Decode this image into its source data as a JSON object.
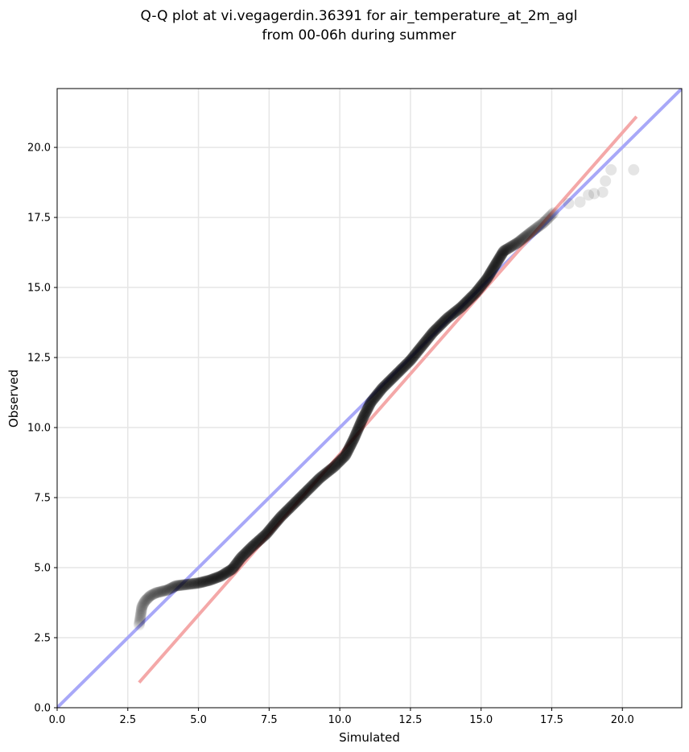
{
  "chart_data": {
    "type": "scatter",
    "title_line1": "Q-Q plot at vi.vegagerdin.36391 for air_temperature_at_2m_agl",
    "title_line2": "from 00-06h during summer",
    "xlabel": "Simulated",
    "ylabel": "Observed",
    "xlim": [
      0,
      22.1
    ],
    "ylim": [
      0,
      22.1
    ],
    "xticks": [
      0.0,
      2.5,
      5.0,
      7.5,
      10.0,
      12.5,
      15.0,
      17.5,
      20.0
    ],
    "yticks": [
      0.0,
      2.5,
      5.0,
      7.5,
      10.0,
      12.5,
      15.0,
      17.5,
      20.0
    ],
    "xtick_labels": [
      "0.0",
      "2.5",
      "5.0",
      "7.5",
      "10.0",
      "12.5",
      "15.0",
      "17.5",
      "20.0"
    ],
    "ytick_labels": [
      "0.0",
      "2.5",
      "5.0",
      "7.5",
      "10.0",
      "12.5",
      "15.0",
      "17.5",
      "20.0"
    ],
    "grid": true,
    "quantile_path": [
      [
        2.9,
        2.95
      ],
      [
        3.0,
        3.6
      ],
      [
        3.1,
        3.8
      ],
      [
        3.3,
        4.0
      ],
      [
        3.5,
        4.1
      ],
      [
        3.9,
        4.2
      ],
      [
        4.2,
        4.35
      ],
      [
        5.0,
        4.45
      ],
      [
        5.4,
        4.55
      ],
      [
        5.8,
        4.7
      ],
      [
        6.2,
        4.95
      ],
      [
        6.5,
        5.35
      ],
      [
        6.9,
        5.75
      ],
      [
        7.4,
        6.2
      ],
      [
        7.9,
        6.8
      ],
      [
        8.4,
        7.3
      ],
      [
        8.9,
        7.8
      ],
      [
        9.3,
        8.2
      ],
      [
        9.8,
        8.6
      ],
      [
        10.2,
        9.0
      ],
      [
        10.5,
        9.6
      ],
      [
        10.8,
        10.3
      ],
      [
        11.1,
        10.9
      ],
      [
        11.5,
        11.4
      ],
      [
        12.0,
        11.9
      ],
      [
        12.5,
        12.4
      ],
      [
        12.9,
        12.9
      ],
      [
        13.3,
        13.4
      ],
      [
        13.8,
        13.9
      ],
      [
        14.3,
        14.3
      ],
      [
        14.8,
        14.8
      ],
      [
        15.2,
        15.3
      ],
      [
        15.5,
        15.8
      ],
      [
        15.8,
        16.3
      ],
      [
        16.3,
        16.6
      ],
      [
        16.8,
        17.0
      ],
      [
        17.2,
        17.3
      ],
      [
        17.6,
        17.7
      ]
    ],
    "tail_points": [
      [
        18.1,
        18.0
      ],
      [
        18.5,
        18.05
      ],
      [
        18.8,
        18.3
      ],
      [
        19.0,
        18.35
      ],
      [
        19.3,
        18.4
      ],
      [
        19.4,
        18.8
      ],
      [
        19.6,
        19.2
      ],
      [
        20.4,
        19.2
      ]
    ],
    "reference_lines": [
      {
        "name": "1:1 line",
        "color": "#a8a8f8",
        "points": [
          [
            0,
            0
          ],
          [
            22.1,
            22.1
          ]
        ]
      },
      {
        "name": "fit line",
        "color": "#f4a8a8",
        "points": [
          [
            2.9,
            0.9
          ],
          [
            20.5,
            21.1
          ]
        ]
      }
    ],
    "marker_color": "#000000"
  }
}
